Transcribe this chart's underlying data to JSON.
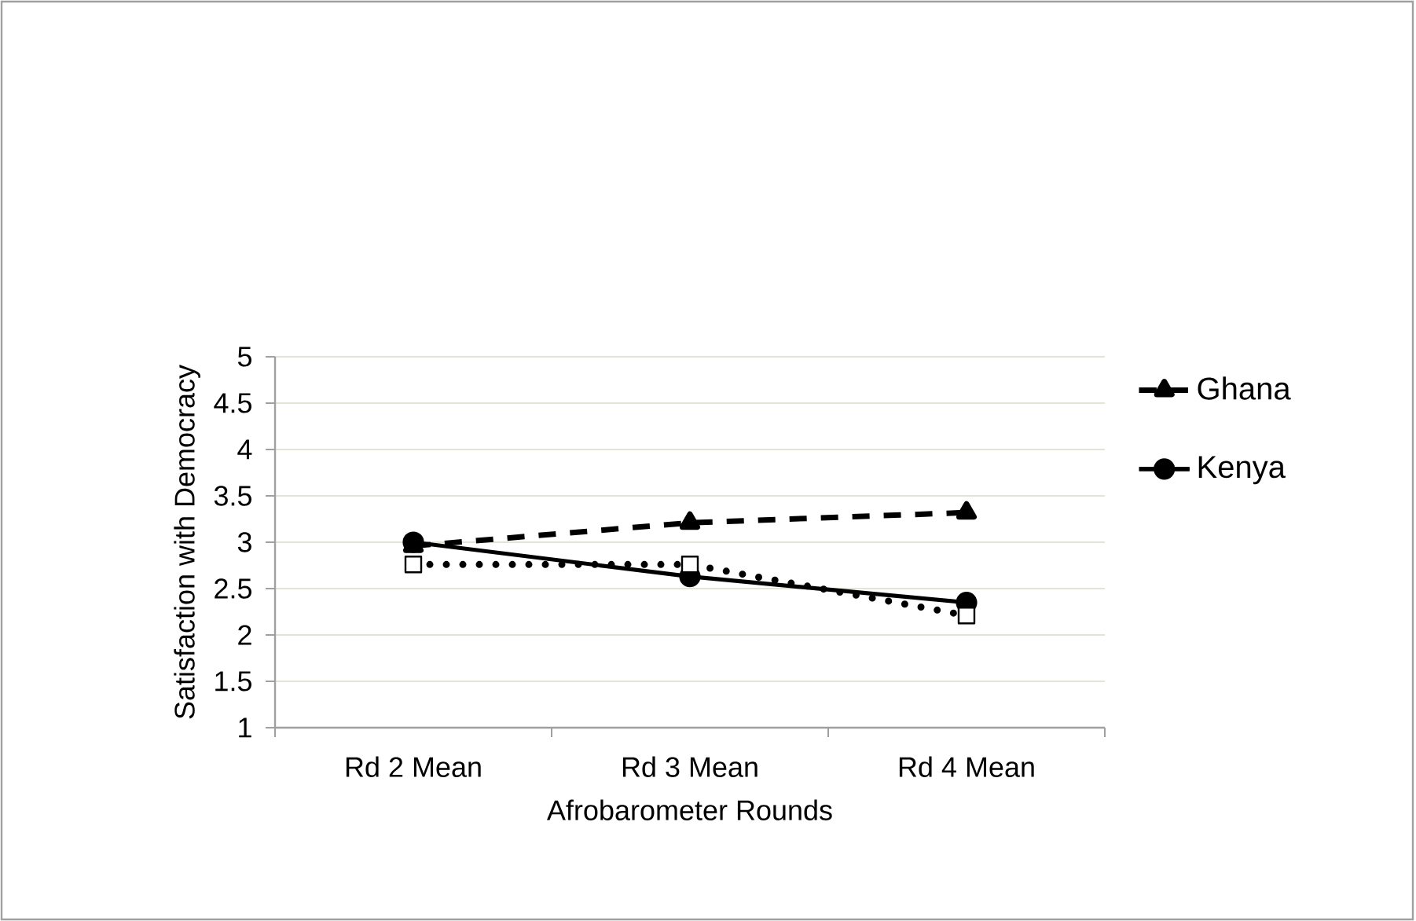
{
  "chart_data": {
    "type": "line",
    "xlabel": "Afrobarometer Rounds",
    "ylabel": "Satisfaction with Democracy",
    "categories": [
      "Rd 2 Mean",
      "Rd 3 Mean",
      "Rd 4 Mean"
    ],
    "series": [
      {
        "name": "Ghana",
        "color": "#000000",
        "values": [
          2.96,
          3.21,
          3.32
        ],
        "marker": "triangle",
        "line_style": "dashed"
      },
      {
        "name": "Kenya",
        "color": "#000000",
        "values": [
          3.0,
          2.63,
          2.35
        ],
        "marker": "circle",
        "line_style": "solid"
      },
      {
        "color": "#000000",
        "values": [
          2.76,
          2.76,
          2.21
        ],
        "marker": "square",
        "line_style": "dotted"
      }
    ],
    "ylim": [
      1,
      5
    ],
    "yticks": [
      1,
      1.5,
      2,
      2.5,
      3,
      3.5,
      4,
      4.5,
      5
    ],
    "grid": "y",
    "legend": "right"
  }
}
